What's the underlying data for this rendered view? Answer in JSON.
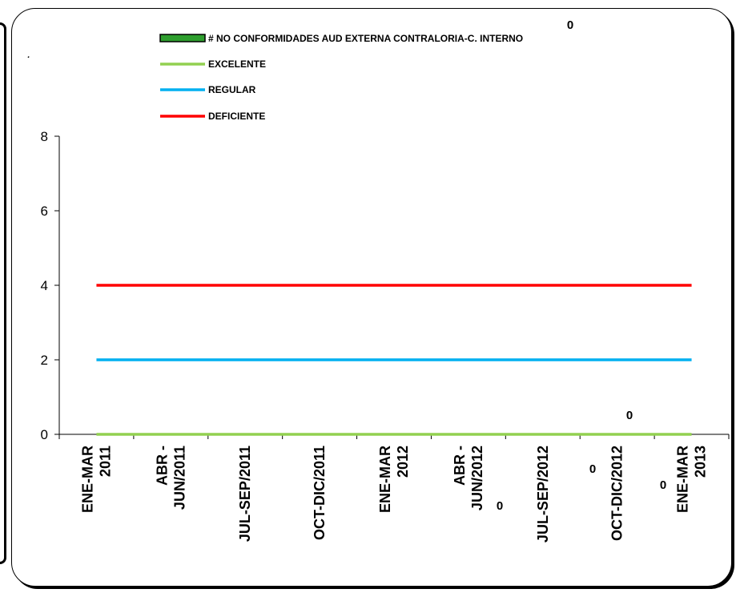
{
  "chart_data": {
    "type": "line",
    "categories": [
      [
        "ENE-MAR",
        "2011"
      ],
      [
        "ABR -",
        "JUN/2011"
      ],
      [
        "JUL-SEP/2011"
      ],
      [
        "OCT-DIC/2011"
      ],
      [
        "ENE-MAR",
        "2012"
      ],
      [
        "ABR -",
        "JUN/2012"
      ],
      [
        "JUL-SEP/2012"
      ],
      [
        "OCT-DIC/2012"
      ],
      [
        "ENE-MAR",
        "2013"
      ]
    ],
    "ylim": [
      0,
      8
    ],
    "yticks": [
      "0",
      "2",
      "4",
      "6",
      "8"
    ],
    "legend_position": "top",
    "series": [
      {
        "name": "# NO CONFORMIDADES AUD EXTERNA CONTRALORIA-C. INTERNO",
        "kind": "bar",
        "color": "#2E9E2E",
        "values": [
          null,
          null,
          null,
          null,
          null,
          0,
          0,
          0,
          0
        ]
      },
      {
        "name": "EXCELENTE",
        "kind": "line",
        "color": "#92D050",
        "values": [
          0,
          0,
          0,
          0,
          0,
          0,
          0,
          0,
          0
        ]
      },
      {
        "name": "REGULAR",
        "kind": "line",
        "color": "#00B0F0",
        "values": [
          2,
          2,
          2,
          2,
          2,
          2,
          2,
          2,
          2
        ]
      },
      {
        "name": "DEFICIENTE",
        "kind": "line",
        "color": "#FF0000",
        "values": [
          4,
          4,
          4,
          4,
          4,
          4,
          4,
          4,
          4
        ]
      }
    ],
    "data_labels": [
      "0",
      "0",
      "0",
      "0",
      "0"
    ],
    "annotations": [
      "."
    ]
  }
}
